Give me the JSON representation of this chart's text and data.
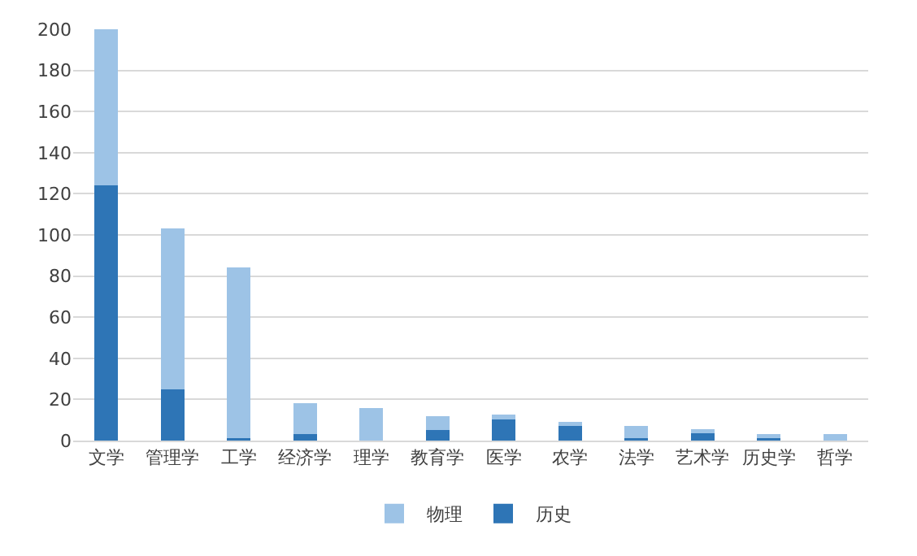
{
  "chart_data": {
    "type": "bar",
    "stacked": true,
    "categories": [
      "文学",
      "管理学",
      "工学",
      "经济学",
      "理学",
      "教育学",
      "医学",
      "农学",
      "法学",
      "艺术学",
      "历史学",
      "哲学"
    ],
    "series": [
      {
        "name": "历史",
        "color": "#2e75b6",
        "values": [
          124,
          25,
          1,
          3,
          0,
          5,
          11,
          7,
          1,
          3.5,
          1,
          0
        ]
      },
      {
        "name": "物理",
        "color": "#9dc3e6",
        "values": [
          76,
          78,
          83,
          15,
          16,
          7,
          1.5,
          2,
          6,
          2,
          2,
          3
        ]
      }
    ],
    "ylim": [
      0,
      200
    ],
    "yticks": [
      0,
      20,
      40,
      60,
      80,
      100,
      120,
      140,
      160,
      180,
      200
    ],
    "grid": "y",
    "legend": "bottom"
  }
}
